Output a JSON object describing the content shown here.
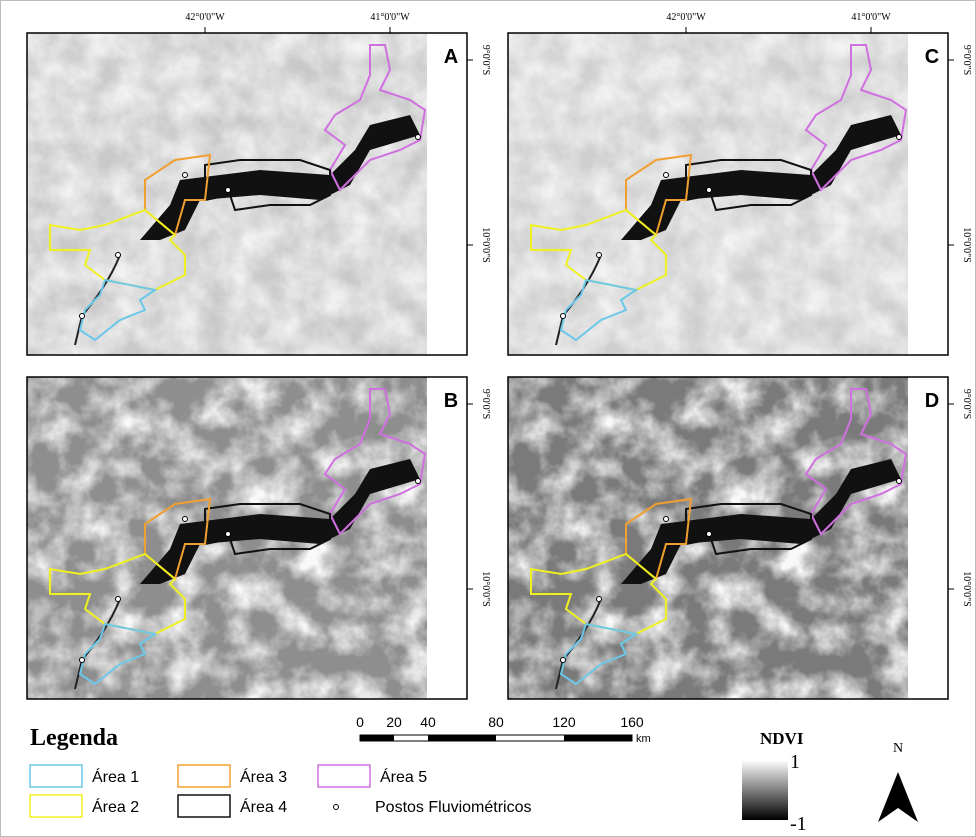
{
  "panels": [
    {
      "label": "A"
    },
    {
      "label": "C"
    },
    {
      "label": "B"
    },
    {
      "label": "D"
    }
  ],
  "longitude_labels": [
    "42°0'0\"W",
    "41°0'0\"W"
  ],
  "latitude_labels": [
    "9°0'0\"S",
    "10°0'0\"S"
  ],
  "legend": {
    "title": "Legenda",
    "items": [
      {
        "label": "Área 1",
        "color": "#6cc8e8"
      },
      {
        "label": "Área 3",
        "color": "#f0a030"
      },
      {
        "label": "Área 5",
        "color": "#d070e0"
      },
      {
        "label": "Área 2",
        "color": "#f0f020"
      },
      {
        "label": "Área 4",
        "color": "#111111"
      }
    ],
    "station_label": "Postos Fluviométricos"
  },
  "scale_bar": {
    "ticks": [
      0,
      20,
      40,
      80,
      120,
      160
    ],
    "unit": "km"
  },
  "ndvi": {
    "title": "NDVI",
    "max": "1",
    "min": "-1"
  },
  "north": "N"
}
